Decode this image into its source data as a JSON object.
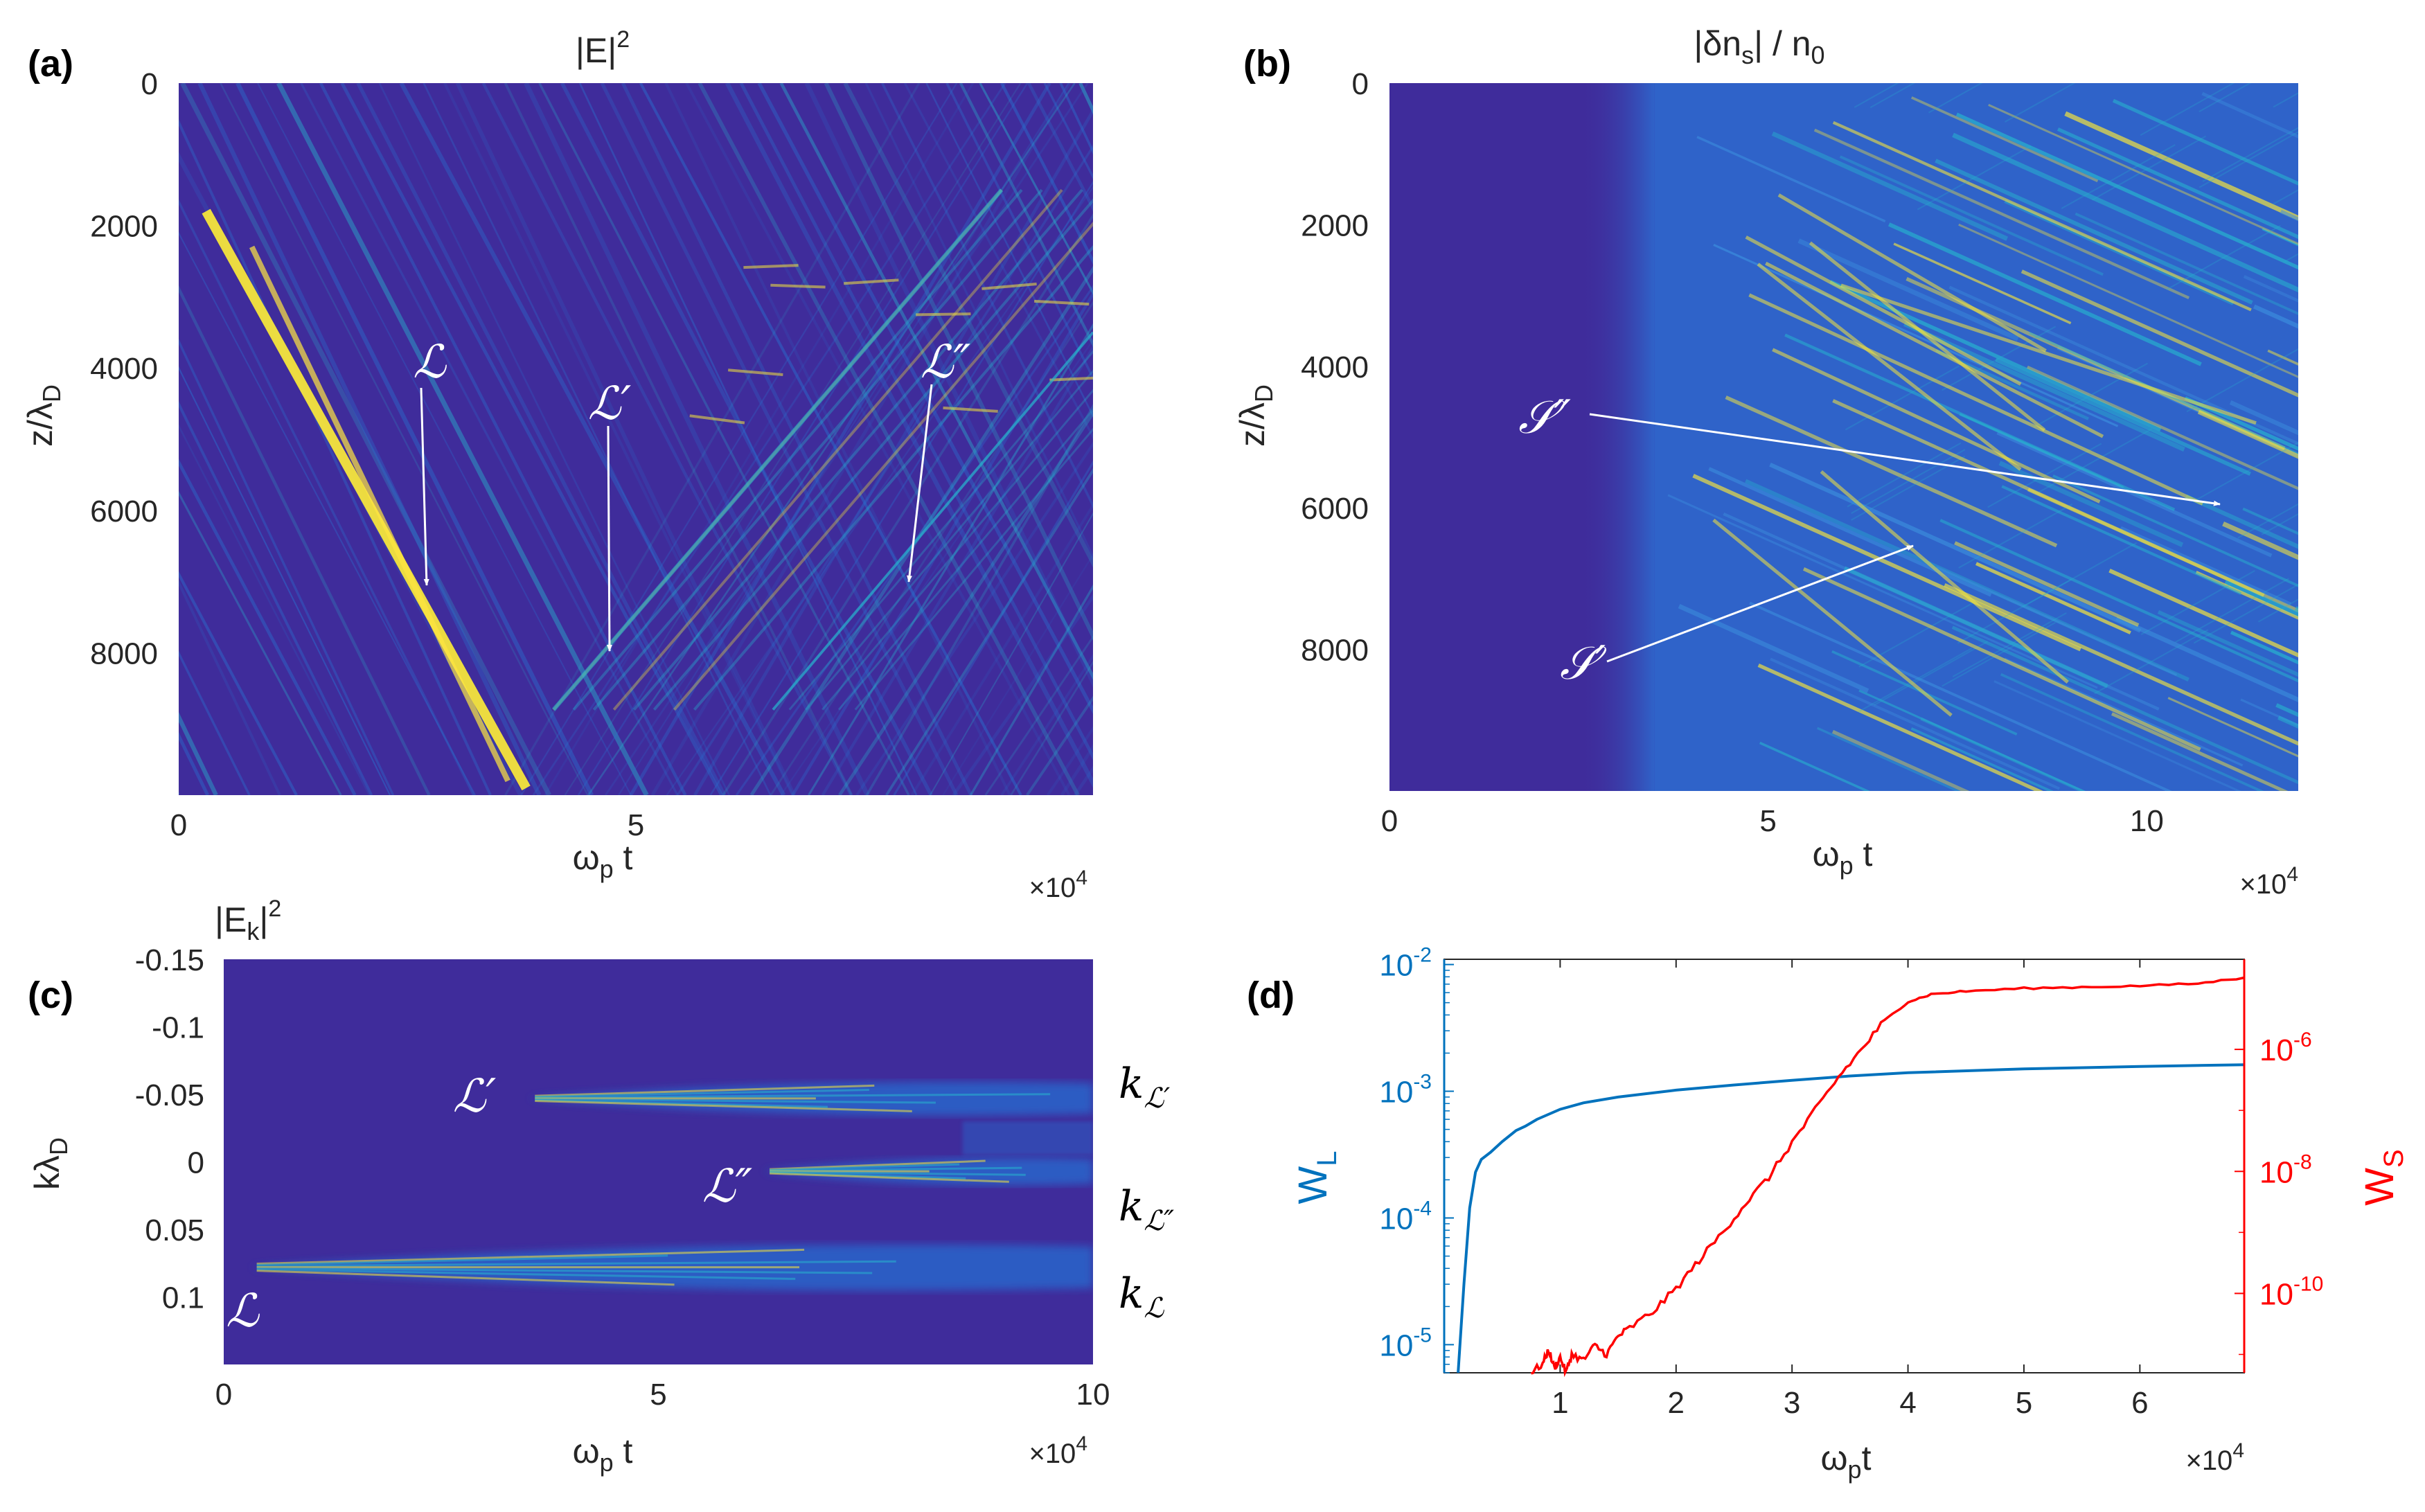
{
  "colors": {
    "bg": "#3f2c9b",
    "mid": "#2a6fcf",
    "cyan": "#27b4cf",
    "yellow": "#f6e53c",
    "wl": "#0072bd",
    "ws": "#ff0000"
  },
  "panels": {
    "a": {
      "label": "(a)",
      "title": "|E|",
      "title_sup": "2",
      "ylabel": "z/λ",
      "ylabel_sub": "D",
      "xlabel": "ω",
      "xlabel_sub": "p",
      "xlabel_tail": " t",
      "xscale": "×10",
      "xscale_sup": "4",
      "xticks": [
        "0",
        "5"
      ],
      "yticks": [
        "0",
        "2000",
        "4000",
        "6000",
        "8000"
      ],
      "annotations": [
        "ℒ",
        "ℒ′",
        "ℒ″"
      ]
    },
    "b": {
      "label": "(b)",
      "title": "|δn",
      "title_sub": "s",
      "title_tail": "| / n",
      "title_sub2": "0",
      "ylabel": "z/λ",
      "ylabel_sub": "D",
      "xlabel": "ω",
      "xlabel_sub": "p",
      "xlabel_tail": " t",
      "xscale": "×10",
      "xscale_sup": "4",
      "xticks": [
        "0",
        "5",
        "10"
      ],
      "yticks": [
        "0",
        "2000",
        "4000",
        "6000",
        "8000"
      ],
      "annotations": [
        "𝒮″",
        "𝒮′"
      ]
    },
    "c": {
      "label": "(c)",
      "title": "|E",
      "title_sub": "k",
      "title_tail": "|",
      "title_sup": "2",
      "ylabel": "kλ",
      "ylabel_sub": "D",
      "xlabel": "ω",
      "xlabel_sub": "p",
      "xlabel_tail": " t",
      "xscale": "×10",
      "xscale_sup": "4",
      "xticks": [
        "0",
        "5",
        "10"
      ],
      "yticks": [
        "-0.15",
        "-0.1",
        "-0.05",
        "0",
        "0.05",
        "0.1"
      ],
      "annotations": [
        "ℒ′",
        "ℒ″",
        "ℒ"
      ],
      "k_labels": [
        "k",
        "k",
        "k"
      ],
      "k_subs": [
        "ℒ′",
        "ℒ″",
        "ℒ"
      ]
    },
    "d": {
      "label": "(d)",
      "ylabel_left": "W",
      "ylabel_left_sub": "L",
      "ylabel_right": "W",
      "ylabel_right_sub": "S",
      "xlabel": "ω",
      "xlabel_sub": "p",
      "xlabel_tail": "t",
      "xscale": "×10",
      "xscale_sup": "4",
      "xticks": [
        "1",
        "2",
        "3",
        "4",
        "5",
        "6"
      ],
      "left_ticks": [
        {
          "base": "10",
          "exp": "-2"
        },
        {
          "base": "10",
          "exp": "-3"
        },
        {
          "base": "10",
          "exp": "-4"
        },
        {
          "base": "10",
          "exp": "-5"
        }
      ],
      "right_ticks": [
        {
          "base": "10",
          "exp": "-6"
        },
        {
          "base": "10",
          "exp": "-8"
        },
        {
          "base": "10",
          "exp": "-10"
        }
      ]
    }
  },
  "chart_data": [
    {
      "panel": "a",
      "type": "heatmap",
      "title": "|E|^2",
      "xlabel": "ω_p t (×10^4)",
      "ylabel": "z/λ_D",
      "xlim": [
        0,
        10
      ],
      "ylim": [
        0,
        10000
      ],
      "y_reversed": true,
      "features": [
        {
          "name": "ℒ",
          "from": [
            0.3,
            1800
          ],
          "to": [
            3.8,
            9900
          ],
          "intensity": "high"
        },
        {
          "name": "ℒ′",
          "from": [
            4.1,
            8800
          ],
          "to": [
            9.0,
            1500
          ],
          "intensity": "medium"
        },
        {
          "name": "ℒ″",
          "from": [
            6.5,
            8800
          ],
          "to": [
            10.0,
            3500
          ],
          "intensity": "low"
        }
      ],
      "annotations": [
        {
          "text": "ℒ",
          "x": 2.7,
          "y": 3900,
          "arrow_to": [
            2.75,
            7000
          ]
        },
        {
          "text": "ℒ′",
          "x": 4.8,
          "y": 4500,
          "arrow_to": [
            4.8,
            8000
          ]
        },
        {
          "text": "ℒ″",
          "x": 8.4,
          "y": 4000,
          "arrow_to": [
            8.0,
            7000
          ]
        }
      ]
    },
    {
      "panel": "b",
      "type": "heatmap",
      "title": "|δn_s| / n_0",
      "xlabel": "ω_p t (×10^4)",
      "ylabel": "z/λ_D",
      "xlim": [
        0,
        12
      ],
      "ylim": [
        0,
        10000
      ],
      "y_reversed": true,
      "features": [
        {
          "name": "onset",
          "x_start": 3.5,
          "note": "fluctuations appear after ω_p t ≈ 3.5×10^4"
        }
      ],
      "annotations": [
        {
          "text": "𝒮″",
          "x": 2.4,
          "y": 4800,
          "arrow_to": [
            11.3,
            6000
          ]
        },
        {
          "text": "𝒮′",
          "x": 2.6,
          "y": 8200,
          "arrow_to": [
            7.0,
            6500
          ]
        }
      ]
    },
    {
      "panel": "c",
      "type": "heatmap",
      "title": "|E_k|^2",
      "xlabel": "ω_p t (×10^4)",
      "ylabel": "kλ_D",
      "xlim": [
        0,
        10
      ],
      "ylim": [
        -0.15,
        0.15
      ],
      "y_reversed": true,
      "bands": [
        {
          "name": "ℒ′",
          "k": -0.047,
          "t_start": 3.5,
          "t_end": 10
        },
        {
          "name": "ℒ″",
          "k": 0.007,
          "t_start": 6.2,
          "t_end": 10
        },
        {
          "name": "ℒ",
          "k": 0.078,
          "t_start": 0.3,
          "t_end": 10
        }
      ]
    },
    {
      "panel": "d",
      "type": "line",
      "xlabel": "ω_p t (×10^4)",
      "xlim": [
        0,
        6.9
      ],
      "series": [
        {
          "name": "W_L",
          "axis": "left",
          "scale": "log",
          "ylim": [
            6e-06,
            0.011
          ],
          "x": [
            0.12,
            0.17,
            0.22,
            0.27,
            0.32,
            0.4,
            0.5,
            0.62,
            0.7,
            0.8,
            1.0,
            1.2,
            1.5,
            2.0,
            2.5,
            3.0,
            3.5,
            4.0,
            5.0,
            6.0,
            6.9
          ],
          "y": [
            6e-06,
            3e-05,
            0.00012,
            0.00023,
            0.00029,
            0.00033,
            0.0004,
            0.00049,
            0.00053,
            0.0006,
            0.00072,
            0.00081,
            0.0009,
            0.00102,
            0.00112,
            0.00122,
            0.00132,
            0.0014,
            0.0015,
            0.00157,
            0.00162
          ]
        },
        {
          "name": "W_S",
          "axis": "right",
          "scale": "log",
          "ylim": [
            5e-12,
            3e-05
          ],
          "x": [
            0.75,
            0.85,
            0.9,
            0.95,
            1.0,
            1.05,
            1.1,
            1.2,
            1.3,
            1.4,
            1.5,
            1.6,
            1.8,
            2.0,
            2.2,
            2.4,
            2.6,
            2.8,
            3.0,
            3.2,
            3.4,
            3.6,
            3.8,
            4.0,
            4.2,
            4.5,
            5.0,
            5.5,
            6.0,
            6.5,
            6.9
          ],
          "y": [
            5e-12,
            7e-12,
            1.2e-11,
            6e-12,
            9e-12,
            5e-12,
            1e-11,
            8e-12,
            1.4e-11,
            1e-11,
            2e-11,
            2.7e-11,
            5e-11,
            1.2e-10,
            3.5e-10,
            1e-09,
            3e-09,
            8e-09,
            3e-08,
            1e-07,
            3.5e-07,
            1e-06,
            3e-06,
            6e-06,
            8e-06,
            9e-06,
            1e-05,
            1.05e-05,
            1.1e-05,
            1.2e-05,
            1.5e-05
          ]
        }
      ]
    }
  ]
}
